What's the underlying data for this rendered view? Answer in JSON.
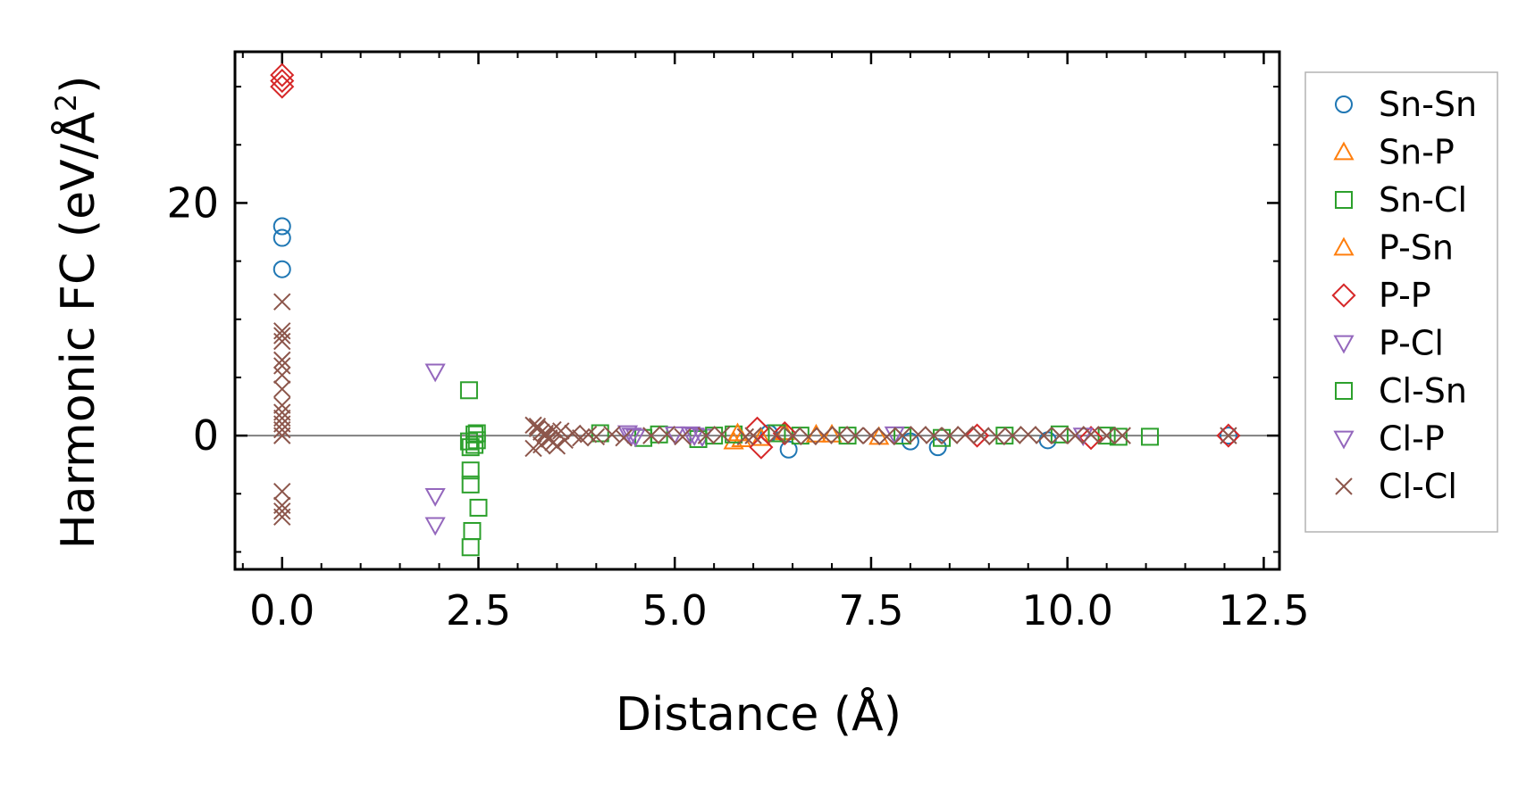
{
  "chart_data": {
    "type": "scatter",
    "title": "",
    "xlabel": "Distance (Å)",
    "ylabel_main": "Harmonic FC (eV/Å",
    "ylabel_sup": "2",
    "ylabel_end": ")",
    "xlim": [
      -0.6,
      12.7
    ],
    "ylim": [
      -11.5,
      33
    ],
    "xticks": [
      0.0,
      2.5,
      5.0,
      7.5,
      10.0,
      12.5
    ],
    "xtick_labels": [
      "0.0",
      "2.5",
      "5.0",
      "7.5",
      "10.0",
      "12.5"
    ],
    "xtick_minor_step": 0.5,
    "yticks": [
      0,
      20
    ],
    "ytick_labels": [
      "0",
      "20"
    ],
    "ytick_minor_step": 5,
    "zero_line": true,
    "legend_position": "right outside",
    "series": [
      {
        "name": "Sn-Sn",
        "marker": "circle",
        "color": "#1f77b4",
        "x": [
          0.0,
          0.0,
          0.0,
          6.2,
          6.45,
          8.0,
          8.35,
          9.75,
          12.05
        ],
        "y": [
          18.0,
          17.0,
          14.3,
          0.2,
          -1.2,
          -0.5,
          -1.0,
          -0.4,
          0.0
        ]
      },
      {
        "name": "Sn-P",
        "marker": "triangle-up",
        "color": "#ff7f0e",
        "x": [
          5.75,
          5.85,
          6.4,
          7.0
        ],
        "y": [
          -0.5,
          -0.3,
          0.3,
          0.1
        ]
      },
      {
        "name": "Sn-Cl",
        "marker": "square",
        "color": "#2ca02c",
        "x": [
          2.38,
          2.4,
          2.4,
          2.4,
          2.42,
          2.45,
          2.45,
          2.48,
          2.48,
          2.5,
          2.38,
          2.4,
          4.05,
          4.6,
          5.3,
          5.75,
          6.6,
          7.2,
          7.9,
          8.4,
          9.9,
          10.5,
          10.65,
          11.05
        ],
        "y": [
          3.9,
          -3.0,
          -4.2,
          -9.6,
          -8.2,
          -0.8,
          0.1,
          0.2,
          -0.4,
          -6.2,
          -0.5,
          -1.0,
          0.2,
          -0.2,
          -0.3,
          0.1,
          0.0,
          0.0,
          0.0,
          -0.2,
          0.1,
          0.0,
          -0.1,
          -0.1
        ]
      },
      {
        "name": "P-Sn",
        "marker": "triangle-up",
        "color": "#ff7f0e",
        "x": [
          5.8,
          6.1,
          6.8,
          7.6
        ],
        "y": [
          0.2,
          -0.2,
          0.1,
          -0.1
        ]
      },
      {
        "name": "P-P",
        "marker": "diamond",
        "color": "#d62728",
        "x": [
          0.0,
          0.0,
          0.0,
          6.05,
          6.1,
          6.4,
          8.85,
          10.3,
          12.05
        ],
        "y": [
          31.0,
          30.5,
          30.0,
          0.6,
          -1.0,
          0.2,
          0.0,
          -0.2,
          0.0
        ]
      },
      {
        "name": "P-Cl",
        "marker": "triangle-down",
        "color": "#9467bd",
        "x": [
          1.95,
          1.95,
          1.95,
          4.4,
          4.5,
          5.2,
          5.35,
          7.8,
          10.2
        ],
        "y": [
          5.5,
          -5.2,
          -7.7,
          0.2,
          -0.1,
          0.1,
          -0.1,
          0.1,
          0.0
        ]
      },
      {
        "name": "Cl-Sn",
        "marker": "square",
        "color": "#2ca02c",
        "x": [
          4.8,
          5.5,
          6.3,
          9.2
        ],
        "y": [
          0.1,
          0.0,
          0.2,
          0.0
        ]
      },
      {
        "name": "Cl-P",
        "marker": "triangle-down",
        "color": "#9467bd",
        "x": [
          4.45,
          5.0,
          5.25
        ],
        "y": [
          0.0,
          0.1,
          0.0
        ]
      },
      {
        "name": "Cl-Cl",
        "marker": "x",
        "color": "#8c564b",
        "x": [
          0.0,
          0.0,
          0.0,
          0.0,
          0.0,
          0.0,
          0.0,
          0.0,
          0.0,
          0.0,
          0.0,
          0.0,
          0.0,
          0.0,
          0.0,
          0.0,
          0.0,
          0.0,
          3.2,
          3.25,
          3.3,
          3.35,
          3.4,
          3.45,
          3.5,
          3.55,
          3.6,
          3.2,
          3.25,
          3.3,
          3.35,
          3.4,
          3.45,
          3.7,
          3.8,
          3.9,
          4.0,
          4.2,
          4.35,
          4.7,
          4.9,
          5.1,
          5.4,
          5.6,
          5.9,
          6.0,
          6.3,
          6.5,
          6.7,
          6.9,
          7.1,
          7.3,
          7.5,
          7.7,
          7.9,
          8.1,
          8.3,
          8.5,
          8.7,
          8.9,
          9.1,
          9.3,
          9.5,
          9.7,
          9.9,
          10.1,
          10.3,
          10.5,
          10.7,
          12.05
        ],
        "y": [
          11.5,
          9.0,
          8.6,
          8.1,
          6.5,
          6.0,
          5.2,
          4.0,
          2.6,
          2.0,
          1.5,
          1.0,
          0.5,
          0.0,
          -4.8,
          -6.0,
          -6.5,
          -7.0,
          0.9,
          0.6,
          0.3,
          0.0,
          -0.3,
          -0.6,
          -0.9,
          0.4,
          -0.4,
          -1.1,
          0.8,
          -0.8,
          0.2,
          -0.2,
          0.5,
          0.2,
          -0.2,
          0.1,
          -0.1,
          0.1,
          -0.2,
          0.0,
          0.1,
          -0.1,
          0.0,
          0.1,
          -0.1,
          0.0,
          0.1,
          0.0,
          -0.1,
          0.0,
          0.1,
          0.0,
          0.0,
          -0.1,
          0.0,
          0.1,
          0.0,
          0.0,
          0.1,
          0.0,
          -0.1,
          0.0,
          0.1,
          0.0,
          0.0,
          0.0,
          0.1,
          0.0,
          0.0,
          0.0
        ]
      }
    ]
  }
}
